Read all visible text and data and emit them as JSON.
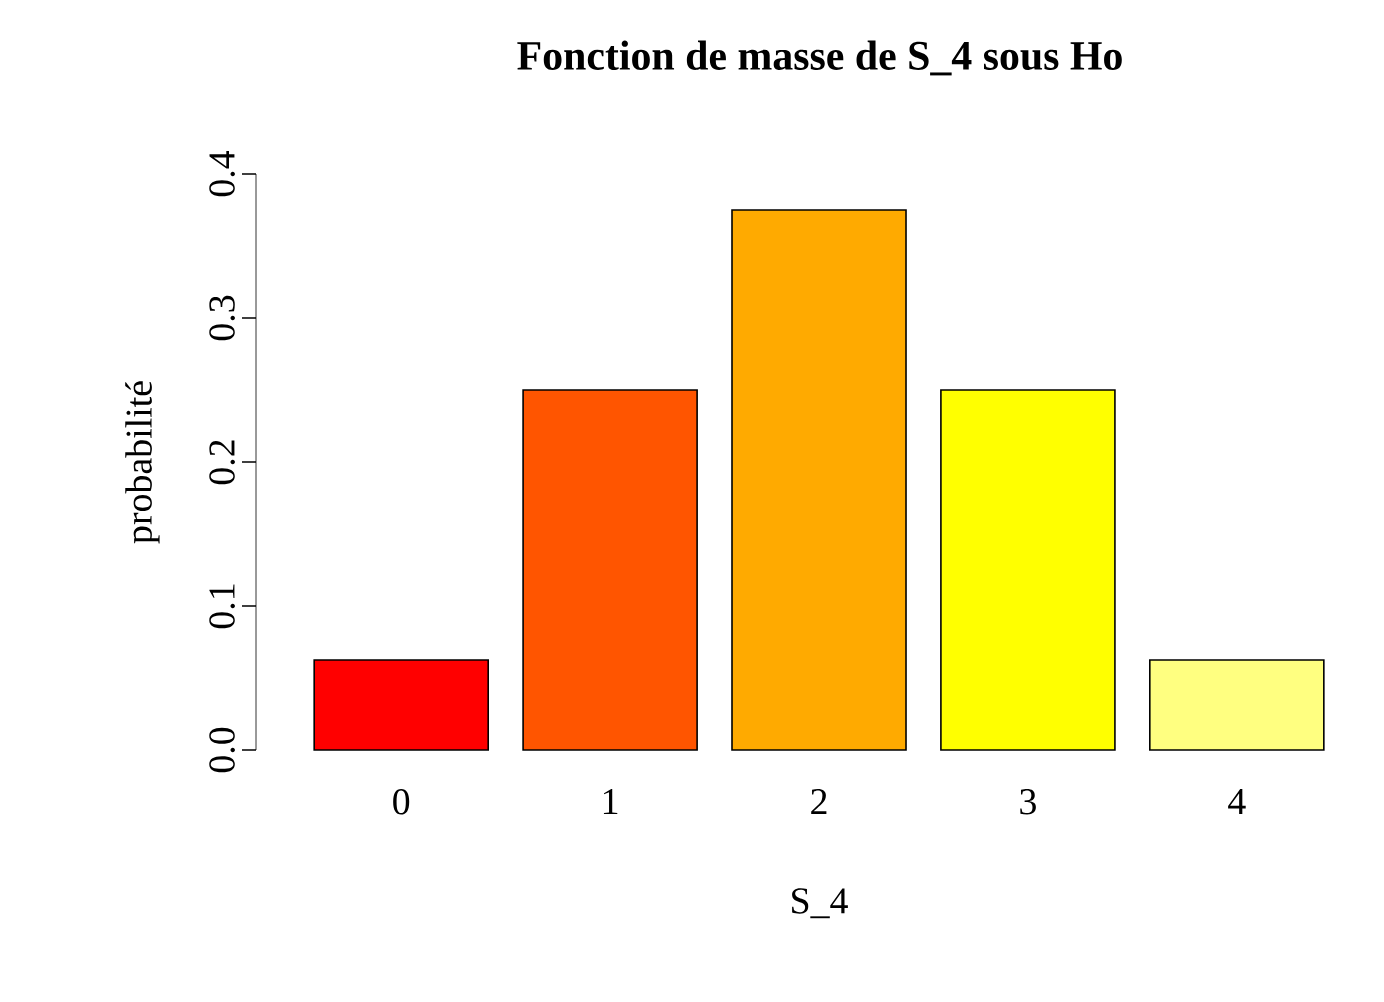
{
  "chart_data": {
    "type": "bar",
    "title": "Fonction de masse de S_4 sous Ho",
    "xlabel": "S_4",
    "ylabel": "probabilité",
    "categories": [
      "0",
      "1",
      "2",
      "3",
      "4"
    ],
    "values": [
      0.0625,
      0.25,
      0.375,
      0.25,
      0.0625
    ],
    "colors": [
      "#ff0000",
      "#ff5500",
      "#ffaa00",
      "#ffff00",
      "#ffff80"
    ],
    "ylim": [
      0,
      0.4
    ],
    "yticks": [
      {
        "value": 0,
        "label": "0.0"
      },
      0.1,
      0.2,
      0.3,
      0.4
    ],
    "grid": false
  }
}
